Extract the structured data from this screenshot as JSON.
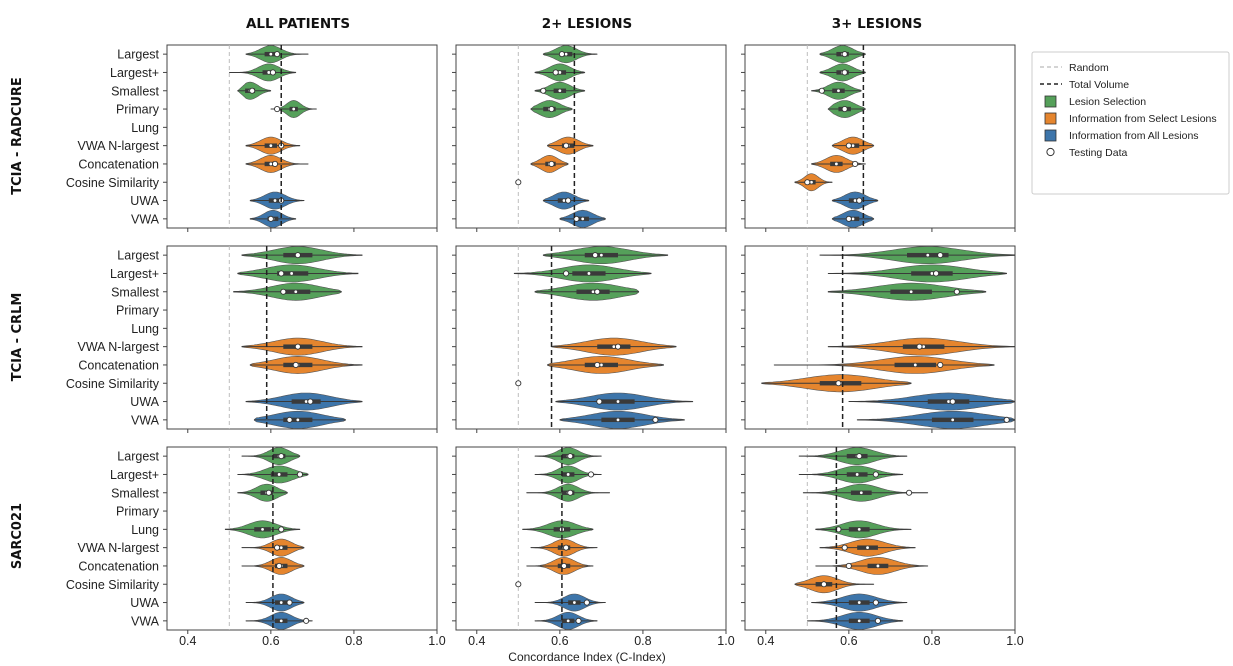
{
  "chart_data": {
    "type": "violin",
    "columns": [
      "ALL PATIENTS",
      "2+ LESIONS",
      "3+ LESIONS"
    ],
    "rows": [
      "TCIA - RADCURE",
      "TCIA - CRLM",
      "SARC021"
    ],
    "xlabel": "Concordance Index (C-Index)",
    "xlim": [
      0.35,
      1.0
    ],
    "xticks": [
      "0.4",
      "0.6",
      "0.8",
      "1.0"
    ],
    "categories": [
      "Largest",
      "Largest+",
      "Smallest",
      "Primary",
      "Lung",
      "VWA N-largest",
      "Concatenation",
      "Cosine Similarity",
      "UWA",
      "VWA"
    ],
    "category_groups": [
      "Lesion Selection",
      "Lesion Selection",
      "Lesion Selection",
      "Lesion Selection",
      "Lesion Selection",
      "Information from Select Lesions",
      "Information from Select Lesions",
      "Information from Select Lesions",
      "Information from All Lesions",
      "Information from All Lesions"
    ],
    "colors": {
      "Lesion Selection": "#55a05a",
      "Information from Select Lesions": "#e5852e",
      "Information from All Lesions": "#3d75aa"
    },
    "legend": {
      "position": "right",
      "entries": [
        "Random",
        "Total Volume",
        "Lesion Selection",
        "Information from Select Lesions",
        "Information from All Lesions",
        "Testing Data"
      ]
    },
    "random_line": 0.5,
    "panels": [
      {
        "row": "TCIA - RADCURE",
        "column": "ALL PATIENTS",
        "total_volume": 0.625,
        "violins": [
          {
            "category": "Largest",
            "median": 0.6,
            "q1": 0.585,
            "q3": 0.615,
            "min": 0.54,
            "max": 0.69,
            "test": 0.615
          },
          {
            "category": "Largest+",
            "median": 0.595,
            "q1": 0.58,
            "q3": 0.61,
            "min": 0.5,
            "max": 0.66,
            "test": 0.605
          },
          {
            "category": "Smallest",
            "median": 0.55,
            "q1": 0.538,
            "q3": 0.562,
            "min": 0.52,
            "max": 0.6,
            "test": 0.555
          },
          {
            "category": "Primary",
            "median": 0.655,
            "q1": 0.645,
            "q3": 0.665,
            "min": 0.6,
            "max": 0.71,
            "test": 0.615
          },
          {
            "category": "VWA N-largest",
            "median": 0.6,
            "q1": 0.585,
            "q3": 0.615,
            "min": 0.54,
            "max": 0.67,
            "test": 0.625
          },
          {
            "category": "Concatenation",
            "median": 0.6,
            "q1": 0.585,
            "q3": 0.615,
            "min": 0.54,
            "max": 0.69,
            "test": 0.61
          },
          {
            "category": "UWA",
            "median": 0.61,
            "q1": 0.595,
            "q3": 0.625,
            "min": 0.55,
            "max": 0.68,
            "test": 0.625
          },
          {
            "category": "VWA",
            "median": 0.605,
            "q1": 0.592,
            "q3": 0.618,
            "min": 0.55,
            "max": 0.66,
            "test": 0.6
          }
        ]
      },
      {
        "row": "TCIA - RADCURE",
        "column": "2+ LESIONS",
        "total_volume": 0.635,
        "violins": [
          {
            "category": "Largest",
            "median": 0.615,
            "q1": 0.6,
            "q3": 0.63,
            "min": 0.56,
            "max": 0.69,
            "test": 0.605
          },
          {
            "category": "Largest+",
            "median": 0.6,
            "q1": 0.585,
            "q3": 0.615,
            "min": 0.54,
            "max": 0.66,
            "test": 0.59
          },
          {
            "category": "Smallest",
            "median": 0.6,
            "q1": 0.585,
            "q3": 0.615,
            "min": 0.54,
            "max": 0.66,
            "test": 0.56
          },
          {
            "category": "Primary",
            "median": 0.575,
            "q1": 0.56,
            "q3": 0.59,
            "min": 0.53,
            "max": 0.63,
            "test": 0.58
          },
          {
            "category": "VWA N-largest",
            "median": 0.62,
            "q1": 0.605,
            "q3": 0.635,
            "min": 0.57,
            "max": 0.68,
            "test": 0.615
          },
          {
            "category": "Concatenation",
            "median": 0.575,
            "q1": 0.565,
            "q3": 0.59,
            "min": 0.53,
            "max": 0.62,
            "test": 0.58
          },
          {
            "category": "Cosine Similarity",
            "median": 0.5,
            "q1": 0.5,
            "q3": 0.5,
            "min": 0.5,
            "max": 0.5,
            "test": 0.5
          },
          {
            "category": "UWA",
            "median": 0.61,
            "q1": 0.595,
            "q3": 0.625,
            "min": 0.56,
            "max": 0.67,
            "test": 0.62
          },
          {
            "category": "VWA",
            "median": 0.655,
            "q1": 0.64,
            "q3": 0.67,
            "min": 0.6,
            "max": 0.71,
            "test": 0.64
          }
        ]
      },
      {
        "row": "TCIA - RADCURE",
        "column": "3+ LESIONS",
        "total_volume": 0.635,
        "violins": [
          {
            "category": "Largest",
            "median": 0.585,
            "q1": 0.57,
            "q3": 0.6,
            "min": 0.53,
            "max": 0.64,
            "test": 0.59
          },
          {
            "category": "Largest+",
            "median": 0.585,
            "q1": 0.57,
            "q3": 0.6,
            "min": 0.53,
            "max": 0.64,
            "test": 0.59
          },
          {
            "category": "Smallest",
            "median": 0.575,
            "q1": 0.56,
            "q3": 0.59,
            "min": 0.51,
            "max": 0.63,
            "test": 0.535
          },
          {
            "category": "Primary",
            "median": 0.59,
            "q1": 0.575,
            "q3": 0.605,
            "min": 0.55,
            "max": 0.64,
            "test": 0.59
          },
          {
            "category": "VWA N-largest",
            "median": 0.61,
            "q1": 0.595,
            "q3": 0.625,
            "min": 0.56,
            "max": 0.66,
            "test": 0.6
          },
          {
            "category": "Concatenation",
            "median": 0.57,
            "q1": 0.555,
            "q3": 0.585,
            "min": 0.51,
            "max": 0.64,
            "test": 0.615
          },
          {
            "category": "Cosine Similarity",
            "median": 0.51,
            "q1": 0.5,
            "q3": 0.52,
            "min": 0.47,
            "max": 0.56,
            "test": 0.5
          },
          {
            "category": "UWA",
            "median": 0.615,
            "q1": 0.6,
            "q3": 0.63,
            "min": 0.56,
            "max": 0.67,
            "test": 0.625
          },
          {
            "category": "VWA",
            "median": 0.61,
            "q1": 0.595,
            "q3": 0.625,
            "min": 0.56,
            "max": 0.66,
            "test": 0.6
          }
        ]
      },
      {
        "row": "TCIA - CRLM",
        "column": "ALL PATIENTS",
        "total_volume": 0.59,
        "violins": [
          {
            "category": "Largest",
            "median": 0.665,
            "q1": 0.63,
            "q3": 0.7,
            "min": 0.53,
            "max": 0.82,
            "test": 0.665
          },
          {
            "category": "Largest+",
            "median": 0.65,
            "q1": 0.615,
            "q3": 0.69,
            "min": 0.52,
            "max": 0.81,
            "test": 0.625
          },
          {
            "category": "Smallest",
            "median": 0.66,
            "q1": 0.625,
            "q3": 0.695,
            "min": 0.51,
            "max": 0.77,
            "test": 0.63
          },
          {
            "category": "VWA N-largest",
            "median": 0.665,
            "q1": 0.63,
            "q3": 0.7,
            "min": 0.53,
            "max": 0.82,
            "test": 0.665
          },
          {
            "category": "Concatenation",
            "median": 0.665,
            "q1": 0.63,
            "q3": 0.7,
            "min": 0.55,
            "max": 0.82,
            "test": 0.66
          },
          {
            "category": "UWA",
            "median": 0.685,
            "q1": 0.65,
            "q3": 0.72,
            "min": 0.54,
            "max": 0.82,
            "test": 0.695
          },
          {
            "category": "VWA",
            "median": 0.665,
            "q1": 0.63,
            "q3": 0.7,
            "min": 0.56,
            "max": 0.78,
            "test": 0.645
          }
        ]
      },
      {
        "row": "TCIA - CRLM",
        "column": "2+ LESIONS",
        "total_volume": 0.58,
        "violins": [
          {
            "category": "Largest",
            "median": 0.7,
            "q1": 0.66,
            "q3": 0.74,
            "min": 0.56,
            "max": 0.86,
            "test": 0.685
          },
          {
            "category": "Largest+",
            "median": 0.67,
            "q1": 0.63,
            "q3": 0.71,
            "min": 0.49,
            "max": 0.82,
            "test": 0.615
          },
          {
            "category": "Smallest",
            "median": 0.68,
            "q1": 0.64,
            "q3": 0.72,
            "min": 0.54,
            "max": 0.79,
            "test": 0.69
          },
          {
            "category": "VWA N-largest",
            "median": 0.73,
            "q1": 0.69,
            "q3": 0.77,
            "min": 0.58,
            "max": 0.88,
            "test": 0.74
          },
          {
            "category": "Concatenation",
            "median": 0.7,
            "q1": 0.66,
            "q3": 0.74,
            "min": 0.57,
            "max": 0.85,
            "test": 0.69
          },
          {
            "category": "Cosine Similarity",
            "median": 0.5,
            "q1": 0.5,
            "q3": 0.5,
            "min": 0.5,
            "max": 0.5,
            "test": 0.5
          },
          {
            "category": "UWA",
            "median": 0.74,
            "q1": 0.7,
            "q3": 0.78,
            "min": 0.59,
            "max": 0.92,
            "test": 0.695
          },
          {
            "category": "VWA",
            "median": 0.74,
            "q1": 0.7,
            "q3": 0.78,
            "min": 0.6,
            "max": 0.9,
            "test": 0.83
          }
        ]
      },
      {
        "row": "TCIA - CRLM",
        "column": "3+ LESIONS",
        "total_volume": 0.585,
        "violins": [
          {
            "category": "Largest",
            "median": 0.79,
            "q1": 0.74,
            "q3": 0.84,
            "min": 0.53,
            "max": 1.0,
            "test": 0.82
          },
          {
            "category": "Largest+",
            "median": 0.8,
            "q1": 0.75,
            "q3": 0.85,
            "min": 0.55,
            "max": 0.98,
            "test": 0.81
          },
          {
            "category": "Smallest",
            "median": 0.75,
            "q1": 0.7,
            "q3": 0.8,
            "min": 0.55,
            "max": 0.93,
            "test": 0.86
          },
          {
            "category": "VWA N-largest",
            "median": 0.78,
            "q1": 0.73,
            "q3": 0.83,
            "min": 0.55,
            "max": 1.0,
            "test": 0.77
          },
          {
            "category": "Concatenation",
            "median": 0.76,
            "q1": 0.71,
            "q3": 0.81,
            "min": 0.42,
            "max": 0.95,
            "test": 0.82
          },
          {
            "category": "Cosine Similarity",
            "median": 0.58,
            "q1": 0.53,
            "q3": 0.63,
            "min": 0.39,
            "max": 0.75,
            "test": 0.575
          },
          {
            "category": "UWA",
            "median": 0.84,
            "q1": 0.79,
            "q3": 0.89,
            "min": 0.6,
            "max": 1.0,
            "test": 0.85
          },
          {
            "category": "VWA",
            "median": 0.85,
            "q1": 0.8,
            "q3": 0.9,
            "min": 0.62,
            "max": 1.0,
            "test": 0.98
          }
        ]
      },
      {
        "row": "SARC021",
        "column": "ALL PATIENTS",
        "total_volume": 0.605,
        "violins": [
          {
            "category": "Largest",
            "median": 0.62,
            "q1": 0.605,
            "q3": 0.635,
            "min": 0.53,
            "max": 0.67,
            "test": 0.625
          },
          {
            "category": "Largest+",
            "median": 0.62,
            "q1": 0.6,
            "q3": 0.64,
            "min": 0.52,
            "max": 0.69,
            "test": 0.67
          },
          {
            "category": "Smallest",
            "median": 0.59,
            "q1": 0.575,
            "q3": 0.605,
            "min": 0.52,
            "max": 0.64,
            "test": 0.595
          },
          {
            "category": "Lung",
            "median": 0.58,
            "q1": 0.56,
            "q3": 0.6,
            "min": 0.49,
            "max": 0.67,
            "test": 0.625
          },
          {
            "category": "VWA N-largest",
            "median": 0.625,
            "q1": 0.61,
            "q3": 0.64,
            "min": 0.53,
            "max": 0.68,
            "test": 0.615
          },
          {
            "category": "Concatenation",
            "median": 0.625,
            "q1": 0.61,
            "q3": 0.64,
            "min": 0.53,
            "max": 0.68,
            "test": 0.62
          },
          {
            "category": "UWA",
            "median": 0.625,
            "q1": 0.61,
            "q3": 0.64,
            "min": 0.54,
            "max": 0.68,
            "test": 0.645
          },
          {
            "category": "VWA",
            "median": 0.625,
            "q1": 0.61,
            "q3": 0.64,
            "min": 0.54,
            "max": 0.7,
            "test": 0.685
          }
        ]
      },
      {
        "row": "SARC021",
        "column": "2+ LESIONS",
        "total_volume": 0.605,
        "violins": [
          {
            "category": "Largest",
            "median": 0.62,
            "q1": 0.605,
            "q3": 0.635,
            "min": 0.54,
            "max": 0.7,
            "test": 0.625
          },
          {
            "category": "Largest+",
            "median": 0.62,
            "q1": 0.605,
            "q3": 0.635,
            "min": 0.54,
            "max": 0.7,
            "test": 0.675
          },
          {
            "category": "Smallest",
            "median": 0.62,
            "q1": 0.605,
            "q3": 0.635,
            "min": 0.52,
            "max": 0.72,
            "test": 0.625
          },
          {
            "category": "Lung",
            "median": 0.605,
            "q1": 0.585,
            "q3": 0.625,
            "min": 0.51,
            "max": 0.68,
            "test": 0.605
          },
          {
            "category": "VWA N-largest",
            "median": 0.61,
            "q1": 0.595,
            "q3": 0.625,
            "min": 0.53,
            "max": 0.69,
            "test": 0.615
          },
          {
            "category": "Concatenation",
            "median": 0.61,
            "q1": 0.595,
            "q3": 0.625,
            "min": 0.52,
            "max": 0.68,
            "test": 0.61
          },
          {
            "category": "Cosine Similarity",
            "median": 0.5,
            "q1": 0.5,
            "q3": 0.5,
            "min": 0.5,
            "max": 0.5,
            "test": 0.5
          },
          {
            "category": "UWA",
            "median": 0.635,
            "q1": 0.62,
            "q3": 0.65,
            "min": 0.54,
            "max": 0.71,
            "test": 0.665
          },
          {
            "category": "VWA",
            "median": 0.62,
            "q1": 0.605,
            "q3": 0.635,
            "min": 0.54,
            "max": 0.69,
            "test": 0.645
          }
        ]
      },
      {
        "row": "SARC021",
        "column": "3+ LESIONS",
        "total_volume": 0.57,
        "violins": [
          {
            "category": "Largest",
            "median": 0.62,
            "q1": 0.595,
            "q3": 0.645,
            "min": 0.48,
            "max": 0.74,
            "test": 0.625
          },
          {
            "category": "Largest+",
            "median": 0.62,
            "q1": 0.595,
            "q3": 0.645,
            "min": 0.48,
            "max": 0.73,
            "test": 0.665
          },
          {
            "category": "Smallest",
            "median": 0.63,
            "q1": 0.605,
            "q3": 0.655,
            "min": 0.49,
            "max": 0.79,
            "test": 0.745
          },
          {
            "category": "Lung",
            "median": 0.625,
            "q1": 0.6,
            "q3": 0.65,
            "min": 0.52,
            "max": 0.75,
            "test": 0.575
          },
          {
            "category": "VWA N-largest",
            "median": 0.645,
            "q1": 0.62,
            "q3": 0.67,
            "min": 0.53,
            "max": 0.76,
            "test": 0.59
          },
          {
            "category": "Concatenation",
            "median": 0.67,
            "q1": 0.645,
            "q3": 0.695,
            "min": 0.52,
            "max": 0.79,
            "test": 0.6
          },
          {
            "category": "Cosine Similarity",
            "median": 0.54,
            "q1": 0.52,
            "q3": 0.56,
            "min": 0.47,
            "max": 0.66,
            "test": 0.54
          },
          {
            "category": "UWA",
            "median": 0.625,
            "q1": 0.6,
            "q3": 0.65,
            "min": 0.51,
            "max": 0.74,
            "test": 0.665
          },
          {
            "category": "VWA",
            "median": 0.625,
            "q1": 0.6,
            "q3": 0.65,
            "min": 0.5,
            "max": 0.73,
            "test": 0.67
          }
        ]
      }
    ]
  }
}
